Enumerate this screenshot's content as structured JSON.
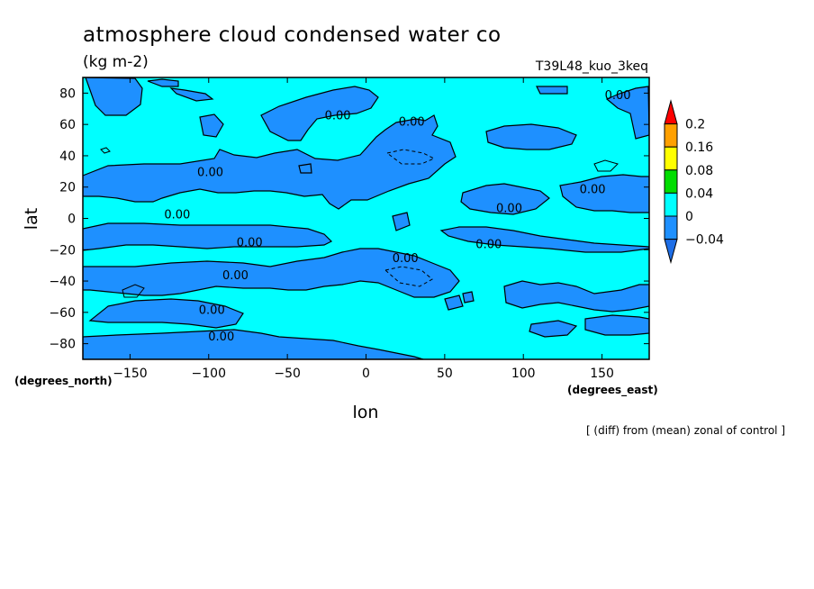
{
  "figure": {
    "title": "atmosphere cloud condensed water co",
    "units": "(kg m-2)",
    "run_name": "T39L48_kuo_3keq",
    "note": "[ (diff) from (mean) zonal of control ]"
  },
  "chart_data": {
    "type": "heatmap",
    "xlabel": "lon",
    "ylabel": "lat",
    "x_unit": "(degrees_east)",
    "y_unit": "(degrees_north)",
    "xlim": [
      -180,
      180
    ],
    "ylim": [
      -90,
      90
    ],
    "x_ticks": [
      -150,
      -100,
      -50,
      0,
      50,
      100,
      150
    ],
    "y_ticks": [
      -80,
      -60,
      -40,
      -20,
      0,
      20,
      40,
      60,
      80
    ],
    "colorbar": {
      "levels": [
        0.2,
        0.16,
        0.08,
        0.04,
        0,
        -0.04
      ],
      "colors": [
        "#ff0000",
        "#ffa000",
        "#ffff00",
        "#00dd00",
        "#00ffff",
        "#1e90ff",
        "#1e6ee6"
      ]
    },
    "background_color": "#00ffff",
    "negative_color": "#1e90ff",
    "contour_labels": [
      {
        "text": "0.00",
        "lon": -18,
        "lat": 66
      },
      {
        "text": "0.00",
        "lon": 29,
        "lat": 62
      },
      {
        "text": "0.00",
        "lon": 160,
        "lat": 79
      },
      {
        "text": "0.00",
        "lon": -99,
        "lat": 30
      },
      {
        "text": "0.00",
        "lon": -120,
        "lat": 3
      },
      {
        "text": "0.00",
        "lon": 144,
        "lat": 19
      },
      {
        "text": "0.00",
        "lon": 91,
        "lat": 7
      },
      {
        "text": "0.00",
        "lon": -74,
        "lat": -15
      },
      {
        "text": "0.00",
        "lon": 78,
        "lat": -16
      },
      {
        "text": "0.00",
        "lon": 25,
        "lat": -25
      },
      {
        "text": "0.00",
        "lon": -83,
        "lat": -36
      },
      {
        "text": "0.00",
        "lon": -98,
        "lat": -58
      },
      {
        "text": "0.00",
        "lon": -92,
        "lat": -75
      }
    ]
  }
}
